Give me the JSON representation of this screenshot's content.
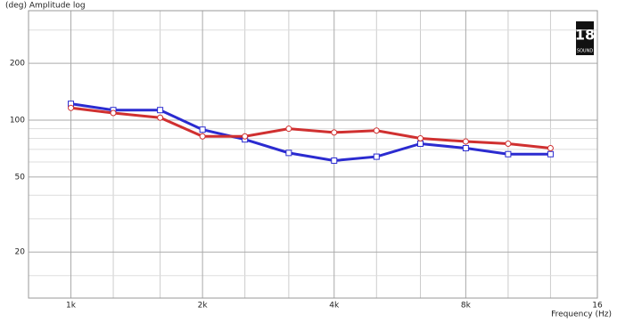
{
  "chart_data": {
    "type": "line",
    "y_axis_label": "(deg)  Amplitude log",
    "x_axis_label": "Frequency  (Hz)",
    "logo": {
      "number": "18",
      "text": "SOUND"
    },
    "x": [
      1000,
      1250,
      1600,
      2000,
      2500,
      3150,
      4000,
      5000,
      6300,
      8000,
      10000,
      12500
    ],
    "series": [
      {
        "color": "#2b2bd0",
        "marker": "square",
        "values": [
          122,
          113,
          113,
          89,
          79,
          67,
          61,
          64,
          75,
          71,
          66,
          66
        ]
      },
      {
        "color": "#d03030",
        "marker": "circle",
        "values": [
          116,
          109,
          103,
          82,
          82,
          90,
          86,
          88,
          80,
          77,
          75,
          71
        ]
      }
    ],
    "xlim": [
      800,
      16000
    ],
    "ylim": [
      11.4,
      380
    ],
    "log_x": true,
    "log_y": true,
    "grid": true,
    "xticks": [
      {
        "value": 1000,
        "label": "1k"
      },
      {
        "value": 2000,
        "label": "2k"
      },
      {
        "value": 4000,
        "label": "4k"
      },
      {
        "value": 8000,
        "label": "8k"
      },
      16
    ],
    "xtick_values": [
      1000,
      2000,
      4000,
      8000,
      16000
    ],
    "xminor": [
      1250,
      1600,
      2500,
      3150,
      5000,
      6300,
      10000,
      12500
    ],
    "yticks": [
      200,
      100,
      50,
      20
    ],
    "yminor": [
      300,
      90,
      80,
      70,
      60,
      40,
      30,
      15
    ]
  }
}
